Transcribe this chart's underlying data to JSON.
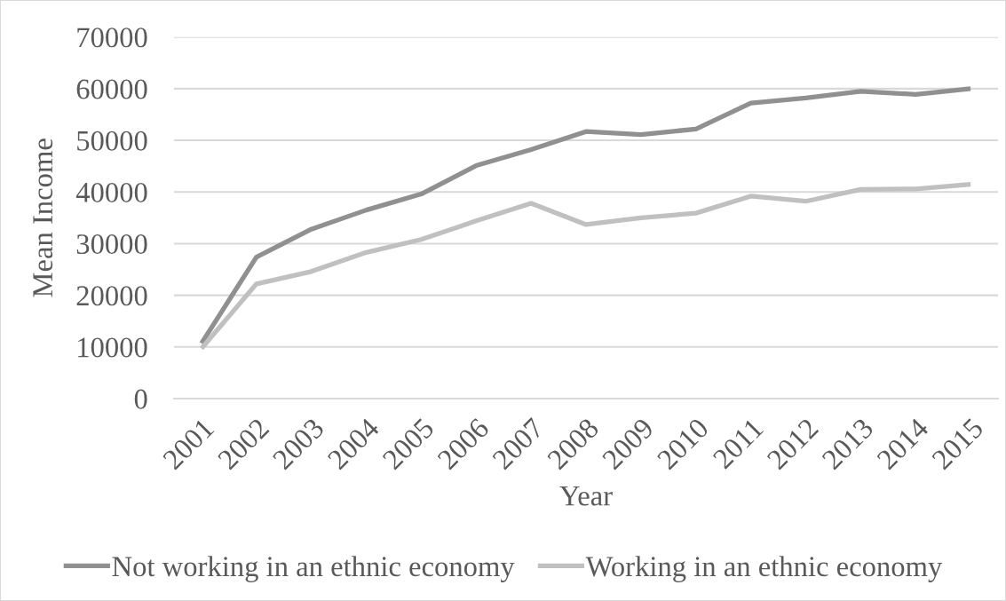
{
  "chart_data": {
    "type": "line",
    "xlabel": "Year",
    "ylabel": "Mean Income",
    "categories": [
      "2001",
      "2002",
      "2003",
      "2004",
      "2005",
      "2006",
      "2007",
      "2008",
      "2009",
      "2010",
      "2011",
      "2012",
      "2013",
      "2014",
      "2015"
    ],
    "series": [
      {
        "name": "Not working in an ethnic economy",
        "color": "#909090",
        "values": [
          10700,
          27400,
          32800,
          36500,
          39600,
          45100,
          48200,
          51700,
          51100,
          52200,
          57200,
          58200,
          59500,
          58900,
          60000
        ]
      },
      {
        "name": "Working in an ethnic economy",
        "color": "#c0c0c0",
        "values": [
          9700,
          22200,
          24600,
          28300,
          30800,
          34400,
          37800,
          33700,
          35000,
          35900,
          39200,
          38200,
          40500,
          40600,
          41500
        ]
      }
    ],
    "ylim": [
      0,
      70000
    ],
    "yticks": [
      0,
      10000,
      20000,
      30000,
      40000,
      50000,
      60000,
      70000
    ],
    "grid": "y",
    "legend": "bottom",
    "marker": "none",
    "line_style": "solid"
  }
}
